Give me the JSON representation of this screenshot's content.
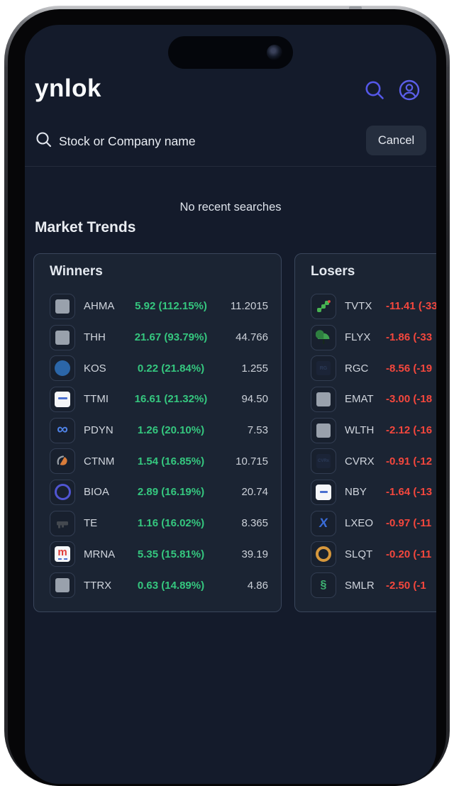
{
  "app": {
    "logo_text": "уnlok"
  },
  "header": {
    "icons": [
      {
        "name": "search-icon"
      },
      {
        "name": "profile-icon"
      }
    ]
  },
  "search": {
    "placeholder": "Stock or Company name",
    "cancel_label": "Cancel",
    "field_icon": "magnifier-icon"
  },
  "empty_state": {
    "text": "No recent searches"
  },
  "section": {
    "title": "Market Trends"
  },
  "colors": {
    "screen_background": "#141b2b",
    "card_background": "#1b2433",
    "accent": "#5457e8",
    "gain_green": "#35c77f",
    "loss_red": "#f4473d"
  },
  "cards": {
    "winners": {
      "title": "Winners",
      "change_color": "#35c77f",
      "rows": [
        {
          "ticker": "AHMA",
          "change": "5.92 (112.15%)",
          "value": "11.2015",
          "icon": "square-gray"
        },
        {
          "ticker": "THH",
          "change": "21.67 (93.79%)",
          "value": "44.766",
          "icon": "square-gray"
        },
        {
          "ticker": "KOS",
          "change": "0.22 (21.84%)",
          "value": "1.255",
          "icon": "globe"
        },
        {
          "ticker": "TTMI",
          "change": "16.61 (21.32%)",
          "value": "94.50",
          "icon": "ttmi-logo"
        },
        {
          "ticker": "PDYN",
          "change": "1.26 (20.10%)",
          "value": "7.53",
          "icon": "infinity"
        },
        {
          "ticker": "CTNM",
          "change": "1.54 (16.85%)",
          "value": "10.715",
          "icon": "swirl"
        },
        {
          "ticker": "BIOA",
          "change": "2.89 (16.19%)",
          "value": "20.74",
          "icon": "ring-purple"
        },
        {
          "ticker": "TE",
          "change": "1.16 (16.02%)",
          "value": "8.365",
          "icon": "key-dark"
        },
        {
          "ticker": "MRNA",
          "change": "5.35 (15.81%)",
          "value": "39.19",
          "icon": "mrna-logo"
        },
        {
          "ticker": "TTRX",
          "change": "0.63 (14.89%)",
          "value": "4.86",
          "icon": "square-gray"
        }
      ]
    },
    "losers": {
      "title": "Losers",
      "change_color": "#f4473d",
      "rows": [
        {
          "ticker": "TVTX",
          "change": "-11.41 (-33",
          "value": "",
          "icon": "steps-green"
        },
        {
          "ticker": "FLYX",
          "change": "-1.86 (-33",
          "value": "",
          "icon": "tree-green"
        },
        {
          "ticker": "RGC",
          "change": "-8.56 (-19",
          "value": "",
          "icon": "rgc-faint"
        },
        {
          "ticker": "EMAT",
          "change": "-3.00 (-18",
          "value": "",
          "icon": "square-gray"
        },
        {
          "ticker": "WLTH",
          "change": "-2.12 (-16",
          "value": "",
          "icon": "square-gray"
        },
        {
          "ticker": "CVRX",
          "change": "-0.91 (-12",
          "value": "",
          "icon": "cvrx-faint"
        },
        {
          "ticker": "NBY",
          "change": "-1.64 (-13",
          "value": "",
          "icon": "nby-logo"
        },
        {
          "ticker": "LXEO",
          "change": "-0.97 (-11",
          "value": "",
          "icon": "x-blue"
        },
        {
          "ticker": "SLQT",
          "change": "-0.20 (-11",
          "value": "",
          "icon": "ring-gold"
        },
        {
          "ticker": "SMLR",
          "change": "-2.50 (-1",
          "value": "",
          "icon": "section-green"
        }
      ]
    }
  }
}
